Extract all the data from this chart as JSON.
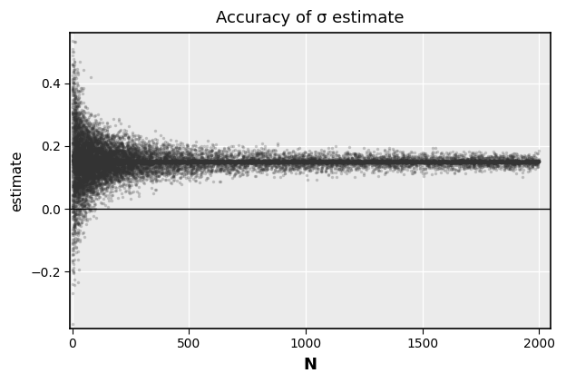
{
  "title": "Accuracy of σ estimate",
  "xlabel": "N",
  "ylabel": "estimate",
  "xlim": [
    -10,
    2050
  ],
  "ylim": [
    -0.38,
    0.56
  ],
  "xticks": [
    0,
    500,
    1000,
    1500,
    2000
  ],
  "yticks": [
    -0.2,
    0.0,
    0.2,
    0.4
  ],
  "hline_y": 0.0,
  "sigma_true": 0.15,
  "background_color": "#ffffff",
  "panel_background": "#ebebeb",
  "grid_color": "#ffffff",
  "point_color": "#333333",
  "point_alpha": 0.25,
  "point_size": 6,
  "n_points": 12000,
  "seed": 42,
  "spread_scale": 0.2
}
